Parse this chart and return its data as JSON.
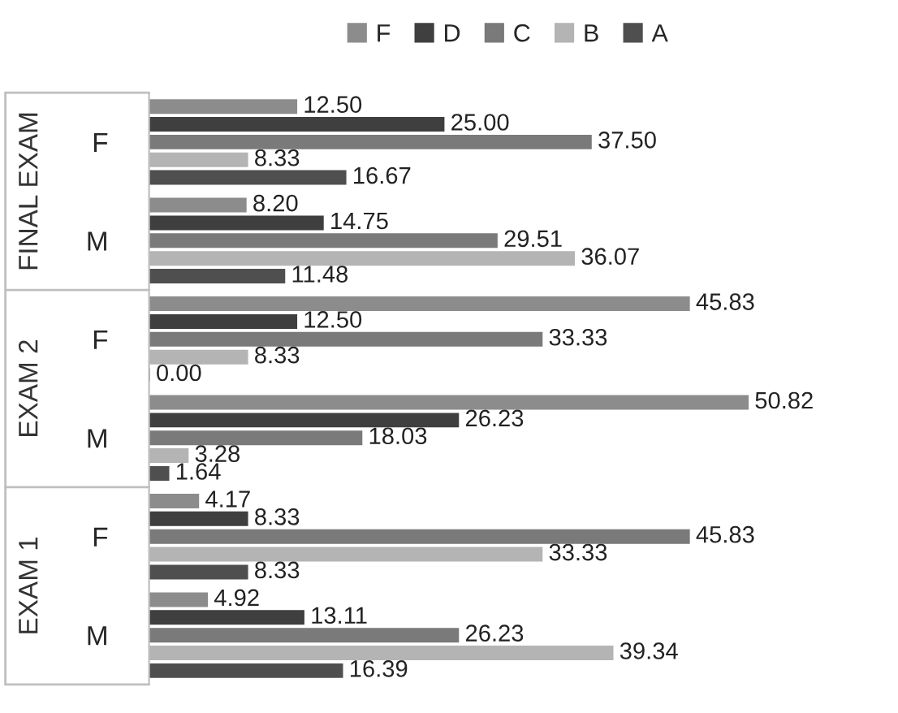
{
  "chart_data": {
    "type": "bar",
    "orientation": "horizontal",
    "categories": [
      "F",
      "M",
      "F",
      "M",
      "F",
      "M"
    ],
    "annotations": [
      "FINAL EXAM",
      "EXAM 2",
      "EXAM 1"
    ],
    "legend": "top",
    "grid": false,
    "series": [
      {
        "name": "F",
        "color": "#8c8c8c",
        "values": [
          12.5,
          8.2,
          45.83,
          50.82,
          4.17,
          4.92
        ],
        "value_labels": [
          "12.50",
          "8.20",
          "45.83",
          "50.82",
          "4.17",
          "4.92"
        ]
      },
      {
        "name": "D",
        "color": "#3f3f3f",
        "values": [
          25.0,
          14.75,
          12.5,
          26.23,
          8.33,
          13.11
        ],
        "value_labels": [
          "25.00",
          "14.75",
          "12.50",
          "26.23",
          "8.33",
          "13.11"
        ]
      },
      {
        "name": "C",
        "color": "#7a7a7a",
        "values": [
          37.5,
          29.51,
          33.33,
          18.03,
          45.83,
          26.23
        ],
        "value_labels": [
          "37.50",
          "29.51",
          "33.33",
          "18.03",
          "45.83",
          "26.23"
        ]
      },
      {
        "name": "B",
        "color": "#b4b4b4",
        "values": [
          8.33,
          36.07,
          8.33,
          3.28,
          33.33,
          39.34
        ],
        "value_labels": [
          "8.33",
          "36.07",
          "8.33",
          "3.28",
          "33.33",
          "39.34"
        ]
      },
      {
        "name": "A",
        "color": "#4f4f4f",
        "values": [
          16.67,
          11.48,
          0.0,
          1.64,
          8.33,
          16.39
        ],
        "value_labels": [
          "16.67",
          "11.48",
          "0.00",
          "1.64",
          "8.33",
          "16.39"
        ]
      }
    ]
  }
}
